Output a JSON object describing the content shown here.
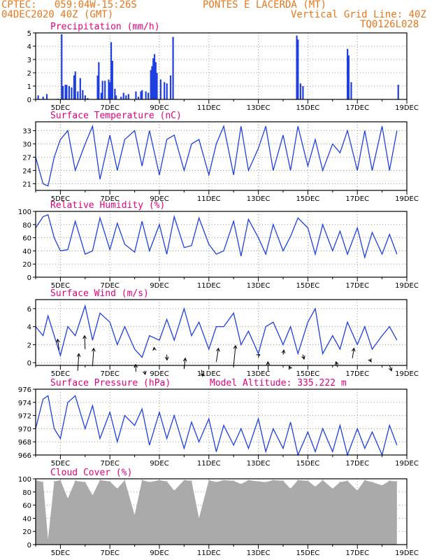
{
  "header": {
    "line1_left": "CPTEC:   059:04W-15:26S",
    "line1_right": "PONTES E LACERDA (MT)",
    "line2_left": "04DEC2020 40Z (GMT)",
    "line2_right": "Vertical Grid Line: 40Z",
    "line3_right": "TQ0126L028"
  },
  "x_dates": [
    "5DEC",
    "7DEC",
    "9DEC",
    "11DEC",
    "13DEC",
    "15DEC",
    "17DEC",
    "19DEC"
  ],
  "colors": {
    "line": "#1f3fe0",
    "bar": "#1f3fe0",
    "cloud": "#aaaaaa",
    "title": "#e4007c",
    "header": "#e8761a",
    "grid": "#999999"
  },
  "chart_data": [
    {
      "type": "bar",
      "title": "Precipitation (mm/h)",
      "ylim": [
        0,
        5
      ],
      "yticks": [
        0,
        1,
        2,
        3,
        4,
        5
      ],
      "bars": [
        [
          0.1,
          0.3
        ],
        [
          0.3,
          0.2
        ],
        [
          0.45,
          0.4
        ],
        [
          0.9,
          0.05
        ],
        [
          1.05,
          4.9
        ],
        [
          1.1,
          1.0
        ],
        [
          1.2,
          1.1
        ],
        [
          1.25,
          1.1
        ],
        [
          1.35,
          1.0
        ],
        [
          1.45,
          0.9
        ],
        [
          1.55,
          1.8
        ],
        [
          1.6,
          2.1
        ],
        [
          1.7,
          0.6
        ],
        [
          1.8,
          1.6
        ],
        [
          1.9,
          0.7
        ],
        [
          2.0,
          0.3
        ],
        [
          2.1,
          0.1
        ],
        [
          2.5,
          1.8
        ],
        [
          2.55,
          2.8
        ],
        [
          2.65,
          0.5
        ],
        [
          2.7,
          1.4
        ],
        [
          2.8,
          1.4
        ],
        [
          2.95,
          1.5
        ],
        [
          3.0,
          1.3
        ],
        [
          3.05,
          4.3
        ],
        [
          3.1,
          2.9
        ],
        [
          3.2,
          0.8
        ],
        [
          3.25,
          0.3
        ],
        [
          3.45,
          0.2
        ],
        [
          3.55,
          0.5
        ],
        [
          3.65,
          0.3
        ],
        [
          3.75,
          0.4
        ],
        [
          4.05,
          0.6
        ],
        [
          4.15,
          0.2
        ],
        [
          4.25,
          0.6
        ],
        [
          4.3,
          0.7
        ],
        [
          4.45,
          0.6
        ],
        [
          4.55,
          0.5
        ],
        [
          4.65,
          2.2
        ],
        [
          4.7,
          2.5
        ],
        [
          4.75,
          3.1
        ],
        [
          4.8,
          3.4
        ],
        [
          4.85,
          2.8
        ],
        [
          4.9,
          2.0
        ],
        [
          5.05,
          1.5
        ],
        [
          5.2,
          1.3
        ],
        [
          5.3,
          1.2
        ],
        [
          5.45,
          1.8
        ],
        [
          5.55,
          4.7
        ],
        [
          10.55,
          4.8
        ],
        [
          10.6,
          4.5
        ],
        [
          10.7,
          1.2
        ],
        [
          10.8,
          1.0
        ],
        [
          12.6,
          3.8
        ],
        [
          12.65,
          3.3
        ],
        [
          12.75,
          1.3
        ],
        [
          14.65,
          1.1
        ]
      ]
    },
    {
      "type": "line",
      "title": "Surface Temperature (nC)",
      "ylim": [
        19.5,
        35
      ],
      "yticks": [
        21,
        24,
        27,
        30,
        33
      ],
      "x": [
        0,
        0.3,
        0.5,
        0.75,
        1.0,
        1.3,
        1.6,
        2.0,
        2.3,
        2.6,
        3.0,
        3.3,
        3.6,
        4.0,
        4.3,
        4.6,
        5.0,
        5.3,
        5.6,
        6.0,
        6.3,
        6.6,
        7.0,
        7.3,
        7.6,
        8.0,
        8.3,
        8.6,
        9.0,
        9.3,
        9.6,
        10.0,
        10.3,
        10.6,
        11.0,
        11.3,
        11.6,
        12.0,
        12.3,
        12.6,
        13.0,
        13.3,
        13.6,
        14.0,
        14.3,
        14.6
      ],
      "values": [
        27,
        21,
        20.5,
        27,
        31,
        33,
        24,
        30,
        34,
        22,
        32,
        24,
        31,
        33,
        25,
        33,
        23,
        31,
        32,
        24,
        30,
        31,
        23,
        30,
        34,
        23,
        34,
        24,
        29,
        34,
        24,
        32,
        24,
        34,
        25,
        31,
        24,
        30,
        28,
        33,
        24,
        33,
        24,
        34,
        24,
        33
      ]
    },
    {
      "type": "line",
      "title": "Relative Humidity (%)",
      "ylim": [
        0,
        100
      ],
      "yticks": [
        0,
        20,
        40,
        60,
        80,
        100
      ],
      "x": [
        0,
        0.3,
        0.5,
        0.75,
        1.0,
        1.3,
        1.6,
        2.0,
        2.3,
        2.6,
        3.0,
        3.3,
        3.6,
        4.0,
        4.3,
        4.6,
        5.0,
        5.3,
        5.6,
        6.0,
        6.3,
        6.6,
        7.0,
        7.3,
        7.6,
        8.0,
        8.3,
        8.6,
        9.0,
        9.3,
        9.6,
        10.0,
        10.3,
        10.6,
        11.0,
        11.3,
        11.6,
        12.0,
        12.3,
        12.6,
        13.0,
        13.3,
        13.6,
        14.0,
        14.3,
        14.6
      ],
      "values": [
        75,
        92,
        95,
        60,
        40,
        42,
        85,
        35,
        40,
        90,
        42,
        82,
        50,
        38,
        85,
        40,
        80,
        35,
        92,
        45,
        48,
        90,
        50,
        35,
        40,
        85,
        32,
        88,
        60,
        35,
        80,
        40,
        62,
        90,
        75,
        35,
        80,
        40,
        70,
        35,
        75,
        30,
        68,
        35,
        65,
        35
      ]
    },
    {
      "type": "line",
      "title": "Surface Wind (m/s)",
      "ylim": [
        -0.3,
        7
      ],
      "yticks": [
        0,
        2,
        4,
        6
      ],
      "x": [
        0,
        0.3,
        0.5,
        0.75,
        1.0,
        1.3,
        1.6,
        2.0,
        2.3,
        2.6,
        3.0,
        3.3,
        3.6,
        4.0,
        4.3,
        4.6,
        5.0,
        5.3,
        5.6,
        6.0,
        6.3,
        6.6,
        7.0,
        7.3,
        7.6,
        8.0,
        8.3,
        8.6,
        9.0,
        9.3,
        9.6,
        10.0,
        10.3,
        10.6,
        11.0,
        11.3,
        11.6,
        12.0,
        12.3,
        12.6,
        13.0,
        13.3,
        13.6,
        14.0,
        14.3,
        14.6
      ],
      "values": [
        4,
        3,
        5.2,
        3,
        0.8,
        4,
        3,
        6.3,
        2.5,
        5.5,
        4.5,
        2,
        4,
        1.5,
        0.6,
        3,
        2.5,
        4.8,
        2.5,
        6,
        3,
        4.5,
        1.5,
        4,
        4,
        5.5,
        2,
        3.5,
        1,
        4,
        4.5,
        2,
        4,
        1,
        4.5,
        6,
        1,
        3,
        1.5,
        4.5,
        2,
        4,
        1.5,
        3,
        4,
        2.5
      ],
      "arrows": [
        [
          0.95,
          1.4,
          -0.8,
          1.2
        ],
        [
          1.7,
          -0.9,
          0.6,
          1.9
        ],
        [
          2.0,
          1.5,
          -0.3,
          1.5
        ],
        [
          2.3,
          -0.4,
          0.6,
          2.0
        ],
        [
          4.05,
          -1.0,
          -0.1,
          0.8
        ],
        [
          4.4,
          -0.9,
          0.3,
          -0.4
        ],
        [
          4.8,
          1.4,
          -0.2,
          0.3
        ],
        [
          5.3,
          0.9,
          0.1,
          -0.6
        ],
        [
          6.0,
          -0.7,
          0.6,
          1.2
        ],
        [
          6.7,
          -0.8,
          0.6,
          -0.7
        ],
        [
          7.3,
          0.1,
          1.1,
          1.5
        ],
        [
          8.0,
          -0.3,
          1.0,
          2.2
        ],
        [
          9.0,
          0.8,
          0.7,
          0.1
        ],
        [
          9.4,
          -0.9,
          -0.2,
          1.0
        ],
        [
          10.0,
          0.9,
          0.4,
          0.5
        ],
        [
          10.3,
          -0.7,
          -0.7,
          0.3
        ],
        [
          10.8,
          0.9,
          0.6,
          -0.5
        ],
        [
          12.2,
          -0.5,
          -0.8,
          0.6
        ],
        [
          12.8,
          0.5,
          0.8,
          1.1
        ],
        [
          13.5,
          0.4,
          0.7,
          -0.3
        ],
        [
          14.3,
          -0.3,
          1.0,
          -0.6
        ]
      ]
    },
    {
      "type": "line",
      "title": "Surface Pressure (hPa)",
      "subtitle": "Model Altitude: 335.222 m",
      "ylim": [
        966,
        976
      ],
      "yticks": [
        966,
        968,
        970,
        972,
        974,
        976
      ],
      "x": [
        0,
        0.3,
        0.5,
        0.75,
        1.0,
        1.3,
        1.6,
        2.0,
        2.3,
        2.6,
        3.0,
        3.3,
        3.6,
        4.0,
        4.3,
        4.6,
        5.0,
        5.3,
        5.6,
        6.0,
        6.3,
        6.6,
        7.0,
        7.3,
        7.6,
        8.0,
        8.3,
        8.6,
        9.0,
        9.3,
        9.6,
        10.0,
        10.3,
        10.6,
        11.0,
        11.3,
        11.6,
        12.0,
        12.3,
        12.6,
        13.0,
        13.3,
        13.6,
        14.0,
        14.3,
        14.6
      ],
      "values": [
        970,
        974.5,
        975,
        970,
        968.5,
        974,
        975,
        970,
        973.5,
        968.5,
        972.5,
        968,
        972,
        970.5,
        973,
        967.5,
        972.5,
        968.5,
        972,
        967,
        971,
        968,
        971.5,
        966.5,
        970.5,
        967.5,
        970,
        967,
        971.5,
        966.5,
        970,
        967,
        971,
        966,
        969.5,
        966.5,
        970,
        966.5,
        970.5,
        966,
        970,
        967,
        969.5,
        966,
        970.5,
        967.5
      ]
    },
    {
      "type": "area",
      "title": "Cloud Cover (%)",
      "ylim": [
        0,
        100
      ],
      "yticks": [
        0,
        20,
        40,
        60,
        80,
        100
      ],
      "x": [
        0,
        0.3,
        0.5,
        0.75,
        1.0,
        1.3,
        1.6,
        2.0,
        2.3,
        2.6,
        3.0,
        3.3,
        3.6,
        4.0,
        4.3,
        4.6,
        5.0,
        5.3,
        5.6,
        6.0,
        6.3,
        6.6,
        7.0,
        7.3,
        7.6,
        8.0,
        8.3,
        8.6,
        9.0,
        9.3,
        9.6,
        10.0,
        10.3,
        10.6,
        11.0,
        11.3,
        11.6,
        12.0,
        12.3,
        12.6,
        13.0,
        13.3,
        13.6,
        14.0,
        14.3,
        14.6
      ],
      "values": [
        98,
        95,
        8,
        96,
        98,
        70,
        97,
        95,
        75,
        98,
        96,
        85,
        98,
        45,
        98,
        95,
        98,
        96,
        82,
        98,
        97,
        40,
        98,
        95,
        98,
        97,
        92,
        98,
        96,
        95,
        98,
        97,
        85,
        98,
        97,
        88,
        98,
        85,
        95,
        97,
        82,
        98,
        95,
        90,
        97,
        96
      ]
    }
  ]
}
